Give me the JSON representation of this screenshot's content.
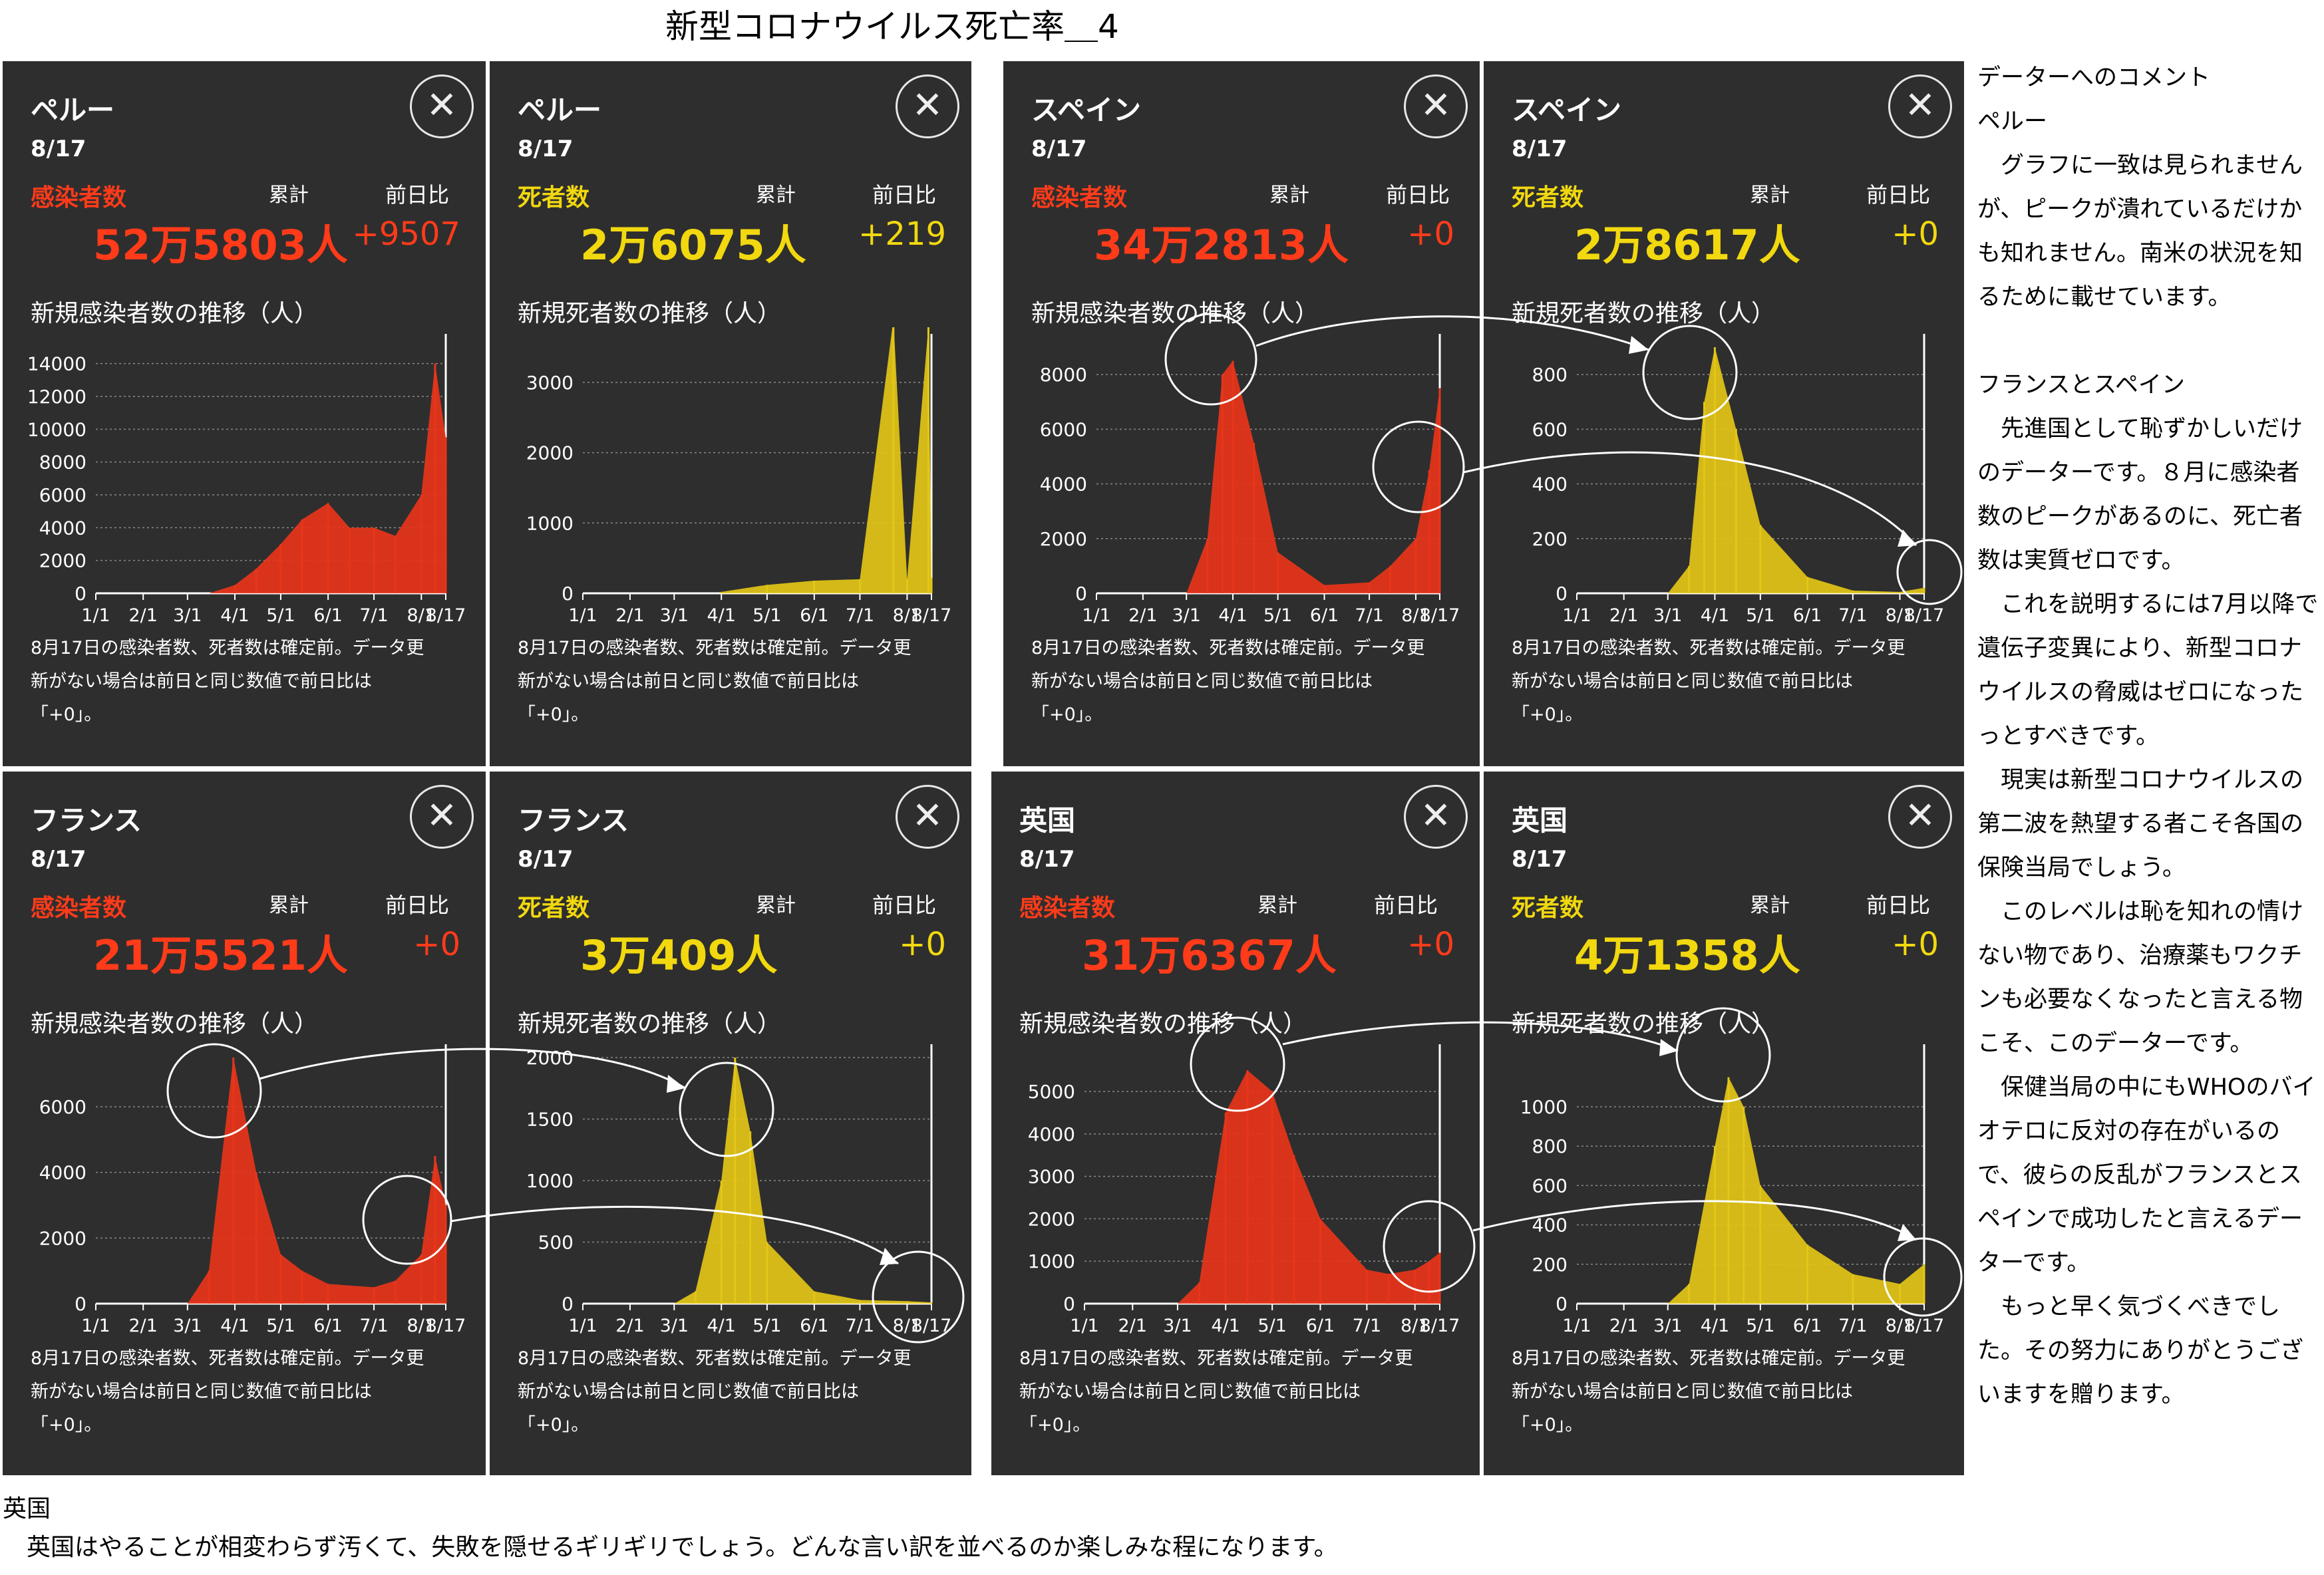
{
  "title": "新型コロナウイルス死亡率＿4",
  "common": {
    "date": "8/17",
    "cumulative_label": "累計",
    "diff_label": "前日比",
    "note_lines": [
      "8月17日の感染者数、死者数は確定前。データ更",
      "新がない場合は前日と同じ数値で前日比は",
      "「+0」。"
    ],
    "close_symbol": "✕"
  },
  "panels": [
    {
      "country": "ペルー",
      "metric": "感染者数",
      "total": "52万5803人",
      "diff": "+9507",
      "trend_title": "新規感染者数の推移（人）",
      "tone": "red"
    },
    {
      "country": "ペルー",
      "metric": "死者数",
      "total": "2万6075人",
      "diff": "+219",
      "trend_title": "新規死者数の推移（人）",
      "tone": "yel"
    },
    {
      "country": "スペイン",
      "metric": "感染者数",
      "total": "34万2813人",
      "diff": "+0",
      "trend_title": "新規感染者数の推移（人）",
      "tone": "red"
    },
    {
      "country": "スペイン",
      "metric": "死者数",
      "total": "2万8617人",
      "diff": "+0",
      "trend_title": "新規死者数の推移（人）",
      "tone": "yel"
    },
    {
      "country": "フランス",
      "metric": "感染者数",
      "total": "21万5521人",
      "diff": "+0",
      "trend_title": "新規感染者数の推移（人）",
      "tone": "red"
    },
    {
      "country": "フランス",
      "metric": "死者数",
      "total": "3万409人",
      "diff": "+0",
      "trend_title": "新規死者数の推移（人）",
      "tone": "yel"
    },
    {
      "country": "英国",
      "metric": "感染者数",
      "total": "31万6367人",
      "diff": "+0",
      "trend_title": "新規感染者数の推移（人）",
      "tone": "red"
    },
    {
      "country": "英国",
      "metric": "死者数",
      "total": "4万1358人",
      "diff": "+0",
      "trend_title": "新規死者数の推移（人）",
      "tone": "yel"
    }
  ],
  "chart_data": [
    {
      "type": "bar",
      "series_color": "#e8351a",
      "ylim": [
        0,
        15000
      ],
      "yticks": [
        0,
        2000,
        4000,
        6000,
        8000,
        10000,
        12000,
        14000
      ],
      "xticks": [
        "1/1",
        "2/1",
        "3/1",
        "4/1",
        "5/1",
        "6/1",
        "7/1",
        "8/1",
        "8/17"
      ],
      "x": [
        "3/15",
        "4/1",
        "4/15",
        "5/1",
        "5/15",
        "6/1",
        "6/15",
        "7/1",
        "7/15",
        "8/1",
        "8/10",
        "8/17"
      ],
      "values": [
        0,
        500,
        1500,
        3000,
        4500,
        5500,
        4000,
        4000,
        3500,
        6000,
        14000,
        9500
      ]
    },
    {
      "type": "bar",
      "series_color": "#e3c617",
      "ylim": [
        0,
        3500
      ],
      "yticks": [
        0,
        1000,
        2000,
        3000
      ],
      "xticks": [
        "1/1",
        "2/1",
        "3/1",
        "4/1",
        "5/1",
        "6/1",
        "7/1",
        "8/1",
        "8/17"
      ],
      "x": [
        "4/1",
        "5/1",
        "6/1",
        "7/1",
        "7/23",
        "8/1",
        "8/15",
        "8/17"
      ],
      "values": [
        20,
        120,
        180,
        200,
        3900,
        200,
        3800,
        220
      ]
    },
    {
      "type": "bar",
      "series_color": "#e8351a",
      "ylim": [
        0,
        9000
      ],
      "yticks": [
        0,
        2000,
        4000,
        6000,
        8000
      ],
      "xticks": [
        "1/1",
        "2/1",
        "3/1",
        "4/1",
        "5/1",
        "6/1",
        "7/1",
        "8/1",
        "8/17"
      ],
      "x": [
        "3/1",
        "3/15",
        "3/25",
        "4/1",
        "4/15",
        "5/1",
        "6/1",
        "7/1",
        "7/15",
        "8/1",
        "8/10",
        "8/17"
      ],
      "values": [
        0,
        2000,
        8000,
        8500,
        5500,
        1500,
        300,
        400,
        1000,
        2000,
        4500,
        7500
      ]
    },
    {
      "type": "bar",
      "series_color": "#e3c617",
      "ylim": [
        0,
        900
      ],
      "yticks": [
        0,
        200,
        400,
        600,
        800
      ],
      "xticks": [
        "1/1",
        "2/1",
        "3/1",
        "4/1",
        "5/1",
        "6/1",
        "7/1",
        "8/1",
        "8/17"
      ],
      "x": [
        "3/1",
        "3/15",
        "3/25",
        "4/1",
        "4/15",
        "5/1",
        "6/1",
        "7/1",
        "8/1",
        "8/17"
      ],
      "values": [
        0,
        100,
        700,
        900,
        600,
        250,
        60,
        10,
        5,
        20
      ]
    },
    {
      "type": "bar",
      "series_color": "#e8351a",
      "ylim": [
        0,
        7500
      ],
      "yticks": [
        0,
        2000,
        4000,
        6000
      ],
      "xticks": [
        "1/1",
        "2/1",
        "3/1",
        "4/1",
        "5/1",
        "6/1",
        "7/1",
        "8/1",
        "8/17"
      ],
      "x": [
        "3/1",
        "3/15",
        "3/31",
        "4/15",
        "5/1",
        "5/15",
        "6/1",
        "7/1",
        "7/15",
        "8/1",
        "8/10",
        "8/17"
      ],
      "values": [
        0,
        1000,
        7500,
        4000,
        1500,
        1000,
        600,
        500,
        700,
        1500,
        4500,
        3000
      ]
    },
    {
      "type": "bar",
      "series_color": "#e3c617",
      "ylim": [
        0,
        2000
      ],
      "yticks": [
        0,
        500,
        1000,
        1500,
        2000
      ],
      "xticks": [
        "1/1",
        "2/1",
        "3/1",
        "4/1",
        "5/1",
        "6/1",
        "7/1",
        "8/1",
        "8/17"
      ],
      "x": [
        "3/1",
        "3/15",
        "4/1",
        "4/10",
        "4/20",
        "5/1",
        "6/1",
        "7/1",
        "8/1",
        "8/17"
      ],
      "values": [
        0,
        100,
        1000,
        2000,
        1400,
        500,
        100,
        30,
        20,
        10
      ]
    },
    {
      "type": "bar",
      "series_color": "#e8351a",
      "ylim": [
        0,
        5800
      ],
      "yticks": [
        0,
        1000,
        2000,
        3000,
        4000,
        5000
      ],
      "xticks": [
        "1/1",
        "2/1",
        "3/1",
        "4/1",
        "5/1",
        "6/1",
        "7/1",
        "8/1",
        "8/17"
      ],
      "x": [
        "3/1",
        "3/15",
        "4/1",
        "4/15",
        "5/1",
        "5/15",
        "6/1",
        "7/1",
        "7/15",
        "8/1",
        "8/10",
        "8/17"
      ],
      "values": [
        0,
        500,
        4500,
        5500,
        5000,
        3500,
        2000,
        800,
        700,
        800,
        1000,
        1200
      ]
    },
    {
      "type": "bar",
      "series_color": "#e3c617",
      "ylim": [
        0,
        1250
      ],
      "yticks": [
        0,
        200,
        400,
        600,
        800,
        1000
      ],
      "xticks": [
        "1/1",
        "2/1",
        "3/1",
        "4/1",
        "5/1",
        "6/1",
        "7/1",
        "8/1",
        "8/17"
      ],
      "x": [
        "3/1",
        "3/15",
        "4/1",
        "4/10",
        "4/20",
        "5/1",
        "6/1",
        "7/1",
        "8/1",
        "8/17"
      ],
      "values": [
        0,
        100,
        800,
        1150,
        1000,
        600,
        300,
        150,
        100,
        200
      ]
    }
  ],
  "comment": {
    "heading": "データーへのコメント",
    "peru_heading": "ペルー",
    "peru_text": "　グラフに一致は見られませんが、ピークが潰れているだけかも知れません。南米の状況を知るために載せています。",
    "fr_es_heading": "フランスとスペイン",
    "paragraphs": [
      "　先進国として恥ずかしいだけのデーターです。８月に感染者数のピークがあるのに、死亡者数は実質ゼロです。",
      "　これを説明するには7月以降で遺伝子変異により、新型コロナウイルスの脅威はゼロになったっとすべきです。",
      "　現実は新型コロナウイルスの第二波を熱望する者こそ各国の保険当局でしょう。",
      "　このレベルは恥を知れの情けない物であり、治療薬もワクチンも必要なくなったと言える物こそ、このデーターです。",
      "　保健当局の中にもWHOのバイオテロに反対の存在がいるので、彼らの反乱がフランスとスペインで成功したと言えるデーターです。",
      "　もっと早く気づくべきでした。その努力にありがとうございますを贈ります。"
    ]
  },
  "bottom": {
    "heading": "英国",
    "text": "　英国はやることが相変わらず汚くて、失敗を隠せるギリギリでしょう。どんな言い訳を並べるのか楽しみな程になります。"
  }
}
